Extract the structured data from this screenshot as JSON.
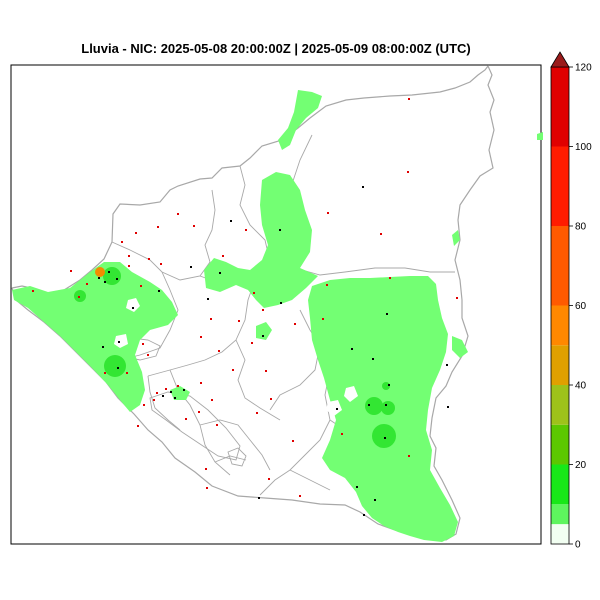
{
  "title": "Lluvia - NIC: 2025-05-08 20:00:00Z | 2025-05-09 08:00:00Z (UTC)",
  "colorbar": {
    "ticks": [
      "0",
      "20",
      "40",
      "60",
      "80",
      "100",
      "120"
    ],
    "levels": [
      {
        "from": 0,
        "to": 5,
        "color": "#f2fff2"
      },
      {
        "from": 5,
        "to": 10,
        "color": "#5ef55e"
      },
      {
        "from": 10,
        "to": 20,
        "color": "#18e818"
      },
      {
        "from": 20,
        "to": 30,
        "color": "#5cc800"
      },
      {
        "from": 30,
        "to": 40,
        "color": "#9ec21a"
      },
      {
        "from": 40,
        "to": 50,
        "color": "#e0a000"
      },
      {
        "from": 50,
        "to": 60,
        "color": "#ff8800"
      },
      {
        "from": 60,
        "to": 80,
        "color": "#ff5a00"
      },
      {
        "from": 80,
        "to": 100,
        "color": "#ff1c00"
      },
      {
        "from": 100,
        "to": 120,
        "color": "#e00000"
      },
      {
        "from": 120,
        "to": 125,
        "color": "#9a1b1b"
      }
    ]
  },
  "rain_colors": {
    "light": "#73ff73",
    "medium": "#33e633",
    "orange": "#f28c00",
    "station_black": "#000000",
    "station_red": "#e00000",
    "border": "#a8a8a8"
  }
}
